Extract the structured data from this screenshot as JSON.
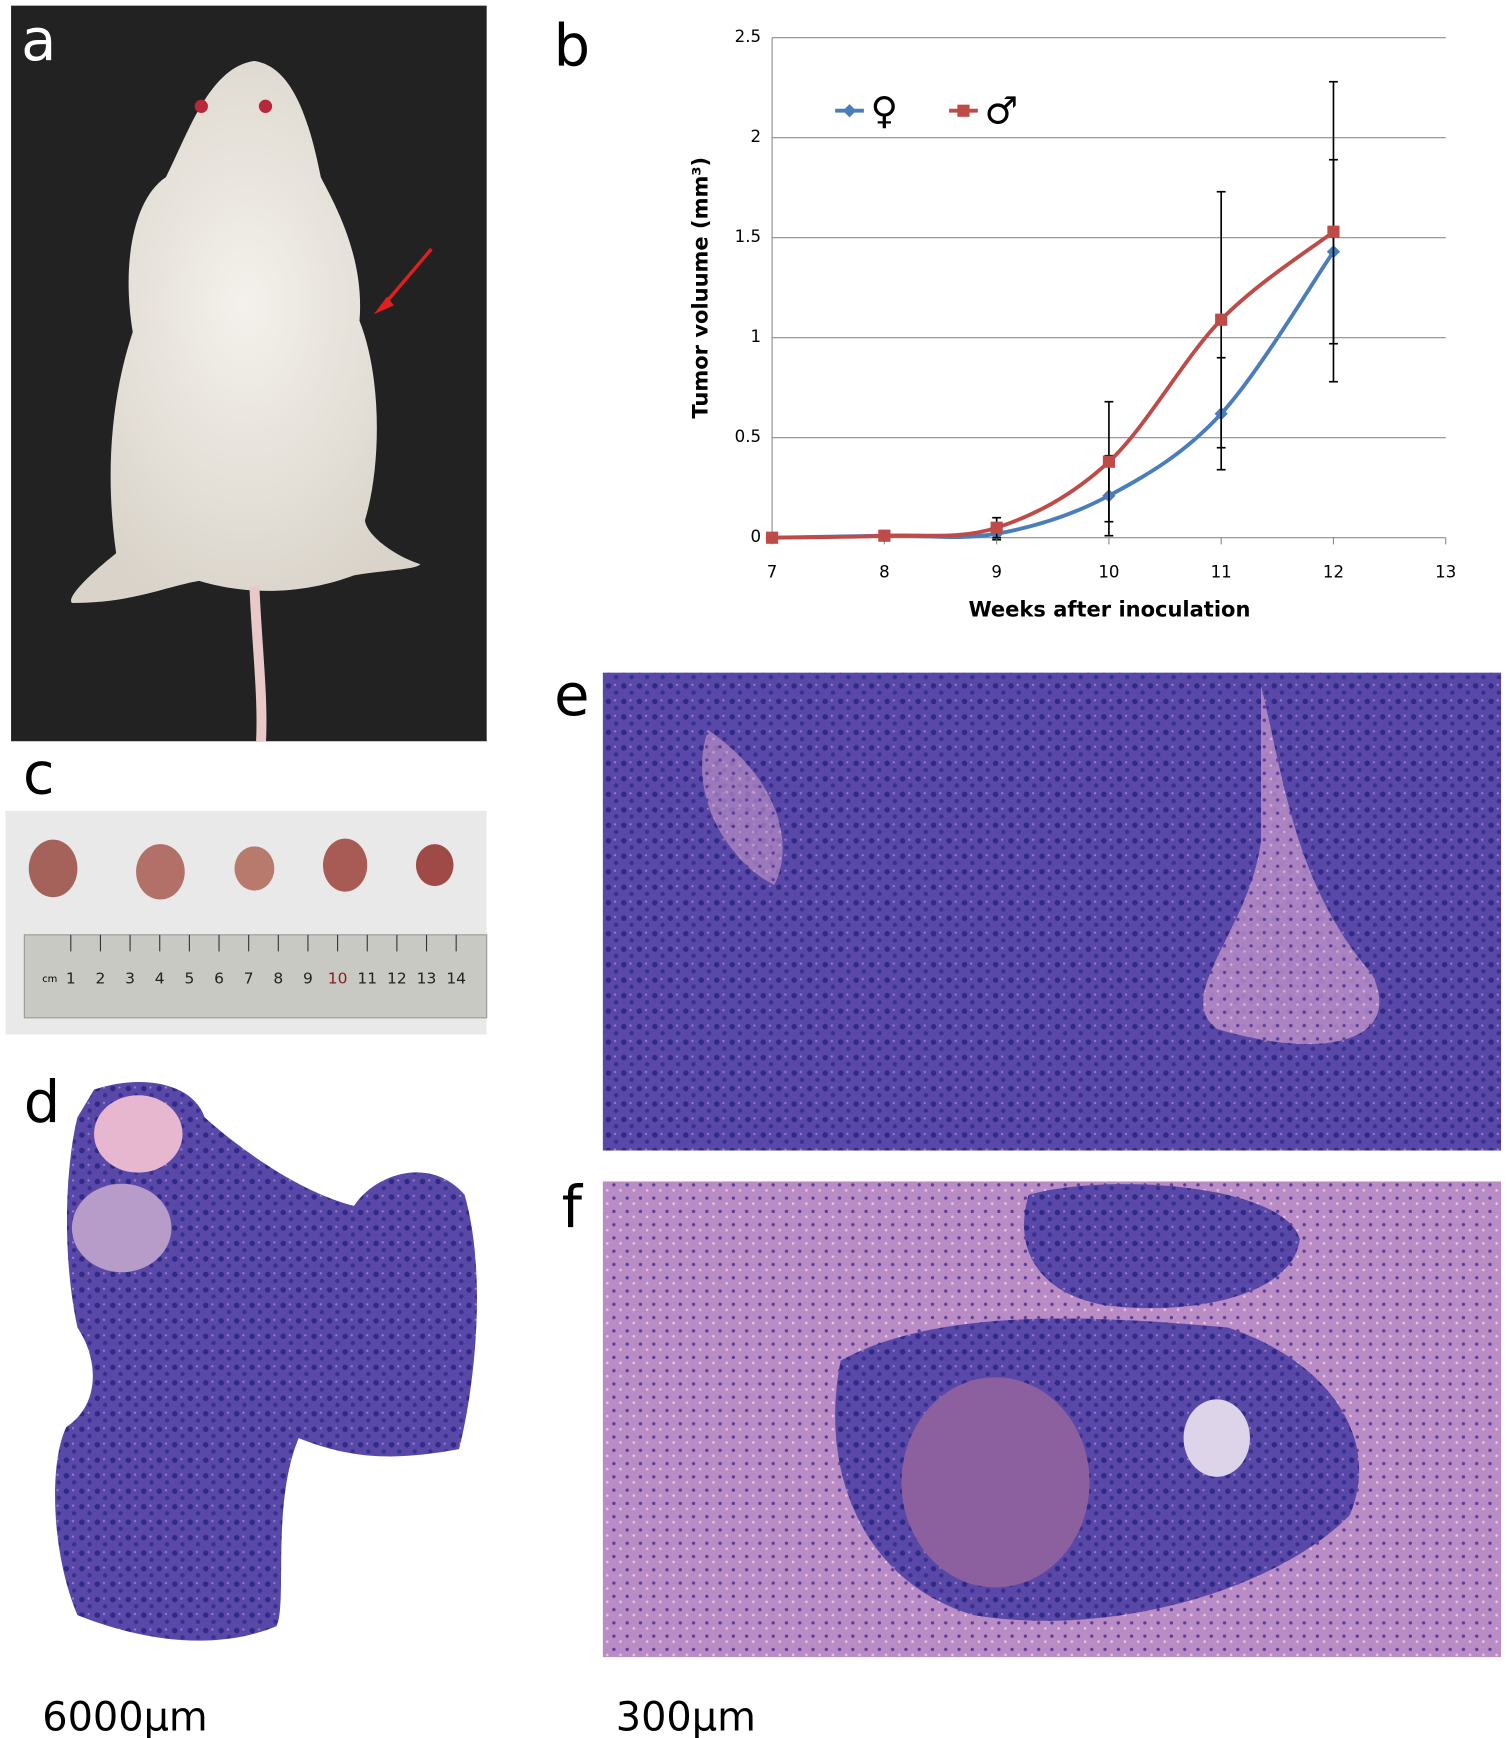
{
  "panel_labels": [
    "a",
    "b",
    "c",
    "d",
    "e",
    "f"
  ],
  "scale_bars": [
    "6000μm",
    "300μm"
  ],
  "ruler": {
    "unit": "cm",
    "labels": [
      1,
      2,
      3,
      4,
      5,
      6,
      7,
      8,
      9,
      10,
      11,
      12,
      13,
      14
    ]
  },
  "chart_data": {
    "type": "line",
    "x_label": "Weeks after inoculation",
    "y_label": "Tumor voluume (mm³)",
    "x": [
      7,
      8,
      9,
      10,
      11,
      12
    ],
    "series": [
      {
        "name": "♀",
        "color": "#4a7ebb",
        "marker": "diamond",
        "values": [
          0,
          0.01,
          0.02,
          0.21,
          0.62,
          1.43
        ],
        "errors": [
          0,
          0,
          0.03,
          0.2,
          0.28,
          0.46
        ]
      },
      {
        "name": "♂",
        "color": "#be4b48",
        "marker": "square",
        "values": [
          0,
          0.01,
          0.05,
          0.38,
          1.09,
          1.53
        ],
        "errors": [
          0,
          0,
          0.05,
          0.3,
          0.64,
          0.75
        ]
      }
    ],
    "xlim": [
      7,
      13
    ],
    "xticks": [
      7,
      8,
      9,
      10,
      11,
      12,
      13
    ],
    "ylim": [
      0,
      2.5
    ],
    "yticks": [
      0,
      0.5,
      1,
      1.5,
      2,
      2.5
    ],
    "grid": true,
    "smooth": true,
    "legend": "upper left"
  }
}
